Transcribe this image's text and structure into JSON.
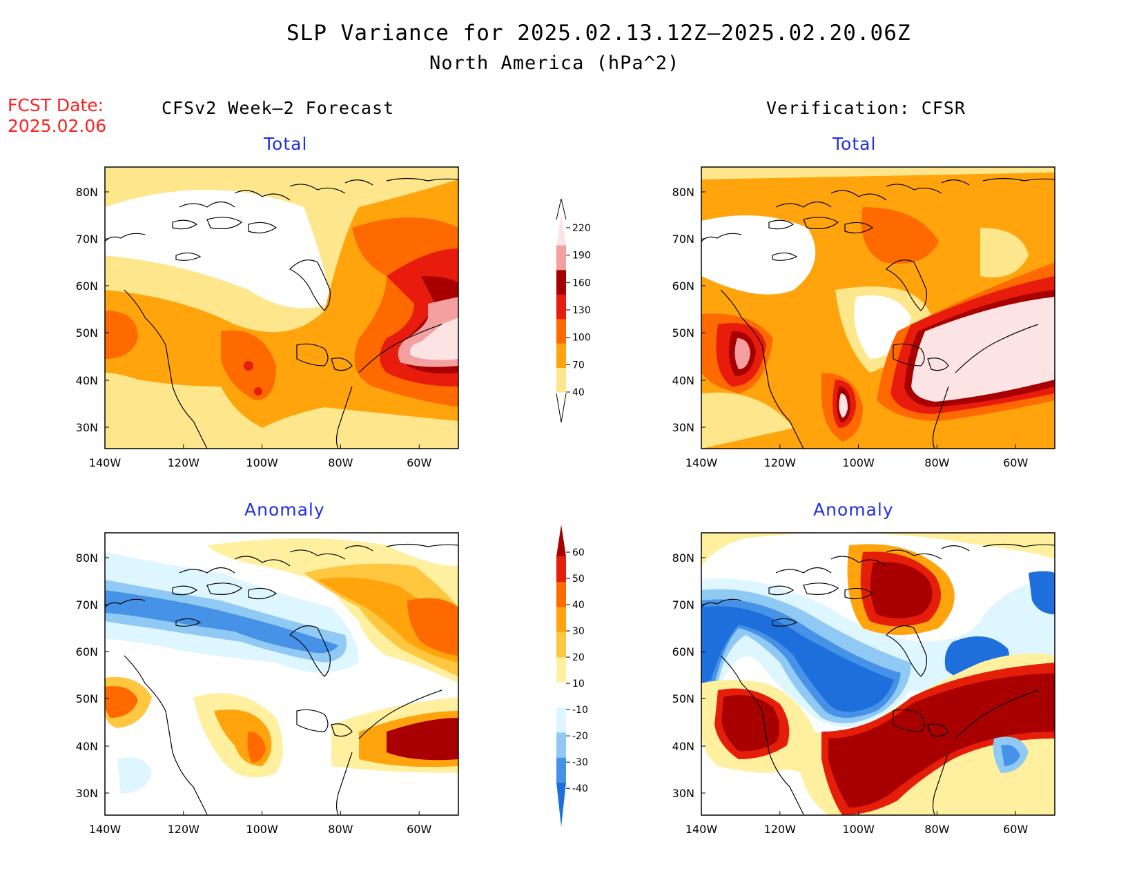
{
  "header": {
    "title": "SLP Variance for 2025.02.13.12Z—2025.02.20.06Z",
    "subtitle": "North America (hPa^2)",
    "fcst_label": "FCST Date:",
    "fcst_date": "2025.02.06",
    "fcst_color": "#ff2020"
  },
  "columns": {
    "left_title": "CFSv2 Week—2 Forecast",
    "right_title": "Verification: CFSR"
  },
  "panels": [
    {
      "id": "forecast-total",
      "title": "Total"
    },
    {
      "id": "verification-total",
      "title": "Total"
    },
    {
      "id": "forecast-anomaly",
      "title": "Anomaly"
    },
    {
      "id": "verification-anomaly",
      "title": "Anomaly"
    }
  ],
  "panel_title_color": "#2030e0",
  "axes": {
    "lon_labels": [
      "140W",
      "120W",
      "100W",
      "80W",
      "60W"
    ],
    "lat_labels": [
      "80N",
      "70N",
      "60N",
      "50N",
      "40N",
      "30N"
    ]
  },
  "colorbars": {
    "total": {
      "levels": [
        "40",
        "70",
        "100",
        "130",
        "160",
        "190",
        "220"
      ],
      "colors": [
        "#fde68c",
        "#ffa40c",
        "#ff6a00",
        "#e81c0c",
        "#a60000",
        "#f4a0a0",
        "#fde4e4"
      ]
    },
    "anomaly": {
      "levels": [
        "60",
        "50",
        "40",
        "30",
        "20",
        "10",
        "-10",
        "-20",
        "-30",
        "-40"
      ],
      "colors": [
        "#a80000",
        "#e51e0a",
        "#ff6a00",
        "#ffa40c",
        "#ffc640",
        "#fff0a0",
        "#ffffff",
        "#def6ff",
        "#90caf4",
        "#4692e6",
        "#1e6edc"
      ]
    }
  }
}
